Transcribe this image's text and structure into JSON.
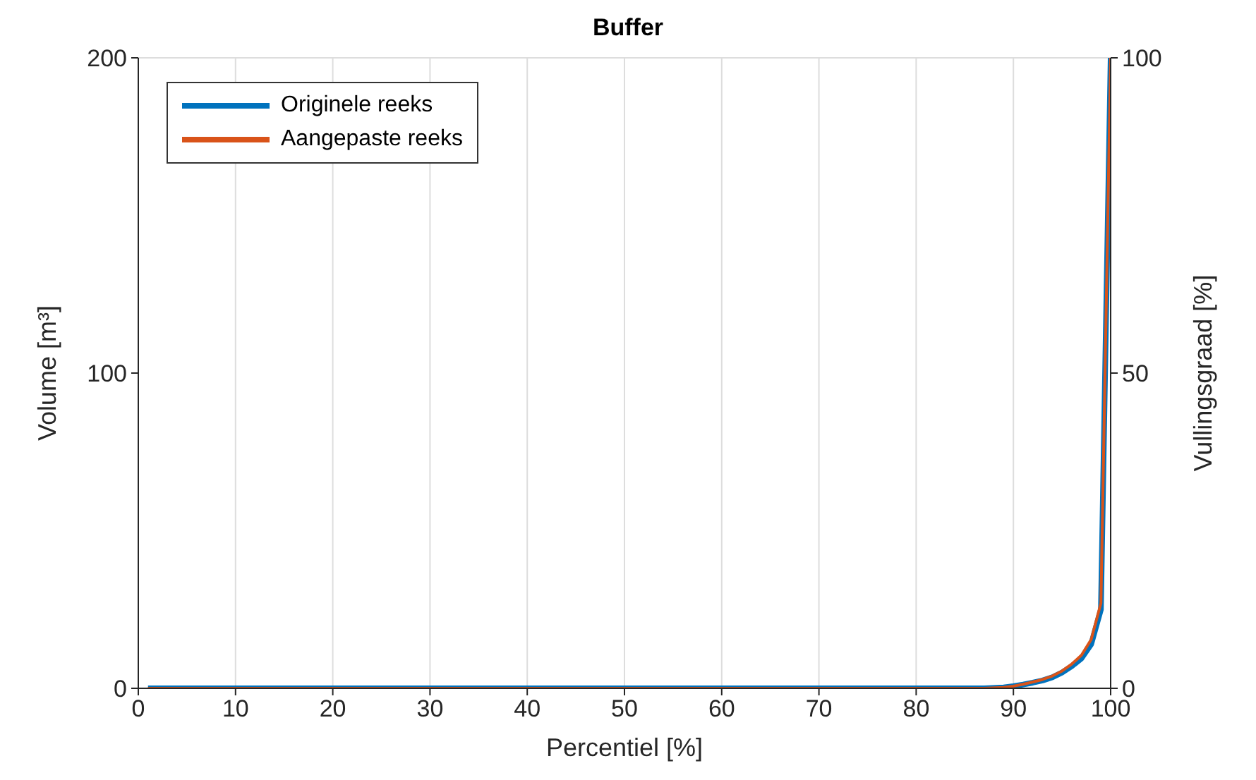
{
  "chart_data": {
    "type": "line",
    "title": "Buffer",
    "xlabel": "Percentiel [%]",
    "ylabel": "Volume [m³]",
    "y2label": "Vullingsgraad [%]",
    "x": [
      1,
      10,
      20,
      30,
      40,
      50,
      60,
      70,
      80,
      85,
      87,
      89,
      90,
      91,
      92,
      93,
      94,
      95,
      96,
      97,
      98,
      99,
      100
    ],
    "series": [
      {
        "name": "Originele reeks",
        "color": "#0072bd",
        "values": [
          0,
          0,
          0,
          0,
          0,
          0,
          0,
          0,
          0,
          0,
          0,
          0.3,
          0.7,
          1.2,
          1.8,
          2.5,
          3.5,
          5,
          7,
          9.5,
          14,
          25,
          200
        ]
      },
      {
        "name": "Aangepaste reeks",
        "color": "#d95319",
        "values": [
          0,
          0,
          0,
          0,
          0,
          0,
          0,
          0,
          0,
          0,
          0,
          0.3,
          0.7,
          1.3,
          2,
          2.8,
          3.9,
          5.5,
          7.7,
          10.5,
          15.5,
          27,
          200
        ]
      }
    ],
    "xlim": [
      0,
      100
    ],
    "xticks": [
      0,
      10,
      20,
      30,
      40,
      50,
      60,
      70,
      80,
      90,
      100
    ],
    "ylim": [
      0,
      200
    ],
    "yticks": [
      0,
      100,
      200
    ],
    "y2lim": [
      0,
      100
    ],
    "y2ticks": [
      0,
      50,
      100
    ],
    "grid": true,
    "legend": "top left",
    "marker": "none",
    "line_style": "solid"
  }
}
